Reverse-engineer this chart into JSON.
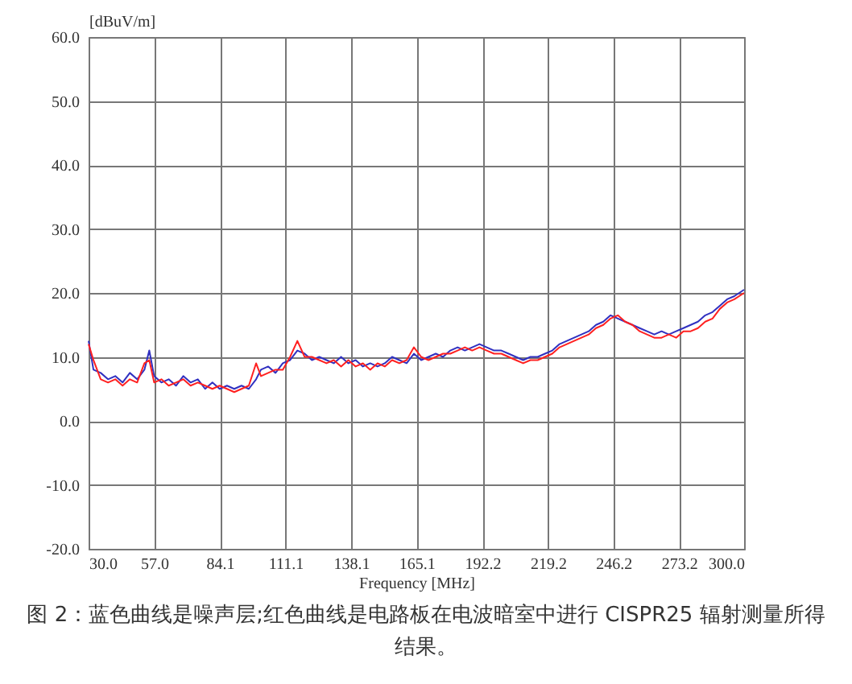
{
  "chart_data": {
    "type": "line",
    "xlabel": "Frequency [MHz]",
    "ylabel": "[dBuV/m]",
    "x": [
      30,
      32,
      35,
      38,
      41,
      44,
      47,
      50,
      53,
      55,
      57,
      60,
      63,
      66,
      69,
      72,
      75,
      78,
      81,
      84,
      87,
      90,
      93,
      96,
      99,
      101,
      104,
      107,
      110,
      113,
      116,
      119,
      122,
      125,
      128,
      131,
      134,
      137,
      140,
      143,
      146,
      149,
      152,
      155,
      158,
      161,
      164,
      167,
      170,
      173,
      176,
      179,
      182,
      185,
      188,
      191,
      194,
      197,
      200,
      203,
      206,
      209,
      212,
      215,
      218,
      221,
      224,
      227,
      230,
      233,
      236,
      239,
      242,
      245,
      248,
      251,
      254,
      257,
      260,
      263,
      266,
      269,
      272,
      275,
      278,
      281,
      284,
      287,
      290,
      293,
      296,
      300
    ],
    "series": [
      {
        "color": "#3030c0",
        "values": [
          12.5,
          8,
          7.5,
          6.5,
          7,
          6,
          7.5,
          6.5,
          8,
          11,
          7,
          6,
          6.5,
          5.5,
          7,
          6,
          6.5,
          5,
          6,
          5,
          5.5,
          5,
          5.5,
          5,
          6.5,
          8,
          8.5,
          7.5,
          9,
          9.5,
          11,
          10.5,
          9.5,
          10,
          9.5,
          9,
          10,
          9,
          9.5,
          8.5,
          9,
          8.5,
          9,
          10,
          9.5,
          9,
          10.5,
          9.5,
          10,
          10.5,
          10,
          11,
          11.5,
          11,
          11.5,
          12,
          11.5,
          11,
          11,
          10.5,
          10,
          9.5,
          10,
          10,
          10.5,
          11,
          12,
          12.5,
          13,
          13.5,
          14,
          15,
          15.5,
          16.5,
          16,
          15.5,
          15,
          14.5,
          14,
          13.5,
          14,
          13.5,
          14,
          14.5,
          15,
          15.5,
          16.5,
          17,
          18,
          19,
          19.5,
          20.5
        ]
      },
      {
        "color": "#ff2020",
        "values": [
          12,
          9.5,
          6.5,
          6,
          6.5,
          5.5,
          6.5,
          6,
          9,
          9.5,
          6,
          6.5,
          5.5,
          6,
          6.5,
          5.5,
          6,
          5.5,
          5,
          5.5,
          5,
          4.5,
          5,
          5.5,
          9,
          7,
          7.5,
          8,
          8,
          10,
          12.5,
          10,
          10,
          9.5,
          9,
          9.5,
          8.5,
          9.5,
          8.5,
          9,
          8,
          9,
          8.5,
          9.5,
          9,
          9.5,
          11.5,
          10,
          9.5,
          10,
          10.5,
          10.5,
          11,
          11.5,
          11,
          11.5,
          11,
          10.5,
          10.5,
          10,
          9.5,
          9,
          9.5,
          9.5,
          10,
          10.5,
          11.5,
          12,
          12.5,
          13,
          13.5,
          14.5,
          15,
          16,
          16.5,
          15.5,
          15,
          14,
          13.5,
          13,
          13,
          13.5,
          13,
          14,
          14,
          14.5,
          15.5,
          16,
          17.5,
          18.5,
          19,
          20
        ]
      }
    ],
    "xlim": [
      30,
      300
    ],
    "xticks": [
      {
        "value": 30,
        "label": "30.0"
      },
      {
        "value": 57,
        "label": "57.0"
      },
      {
        "value": 84.1,
        "label": "84.1"
      },
      {
        "value": 111.1,
        "label": "111.1"
      },
      {
        "value": 138.1,
        "label": "138.1"
      },
      {
        "value": 165.1,
        "label": "165.1"
      },
      {
        "value": 192.2,
        "label": "192.2"
      },
      {
        "value": 219.2,
        "label": "219.2"
      },
      {
        "value": 246.2,
        "label": "246.2"
      },
      {
        "value": 273.2,
        "label": "273.2"
      },
      {
        "value": 300,
        "label": "300.0"
      }
    ],
    "ylim": [
      -20,
      60
    ],
    "yticks": [
      {
        "value": -20,
        "label": "-20.0"
      },
      {
        "value": -10,
        "label": "-10.0"
      },
      {
        "value": 0,
        "label": "0.0"
      },
      {
        "value": 10,
        "label": "10.0"
      },
      {
        "value": 20,
        "label": "20.0"
      },
      {
        "value": 30,
        "label": "30.0"
      },
      {
        "value": 40,
        "label": "40.0"
      },
      {
        "value": 50,
        "label": "50.0"
      },
      {
        "value": 60,
        "label": "60.0"
      }
    ],
    "grid": true,
    "legend": false,
    "marker": "none",
    "line_style": "solid",
    "annotations": [
      "图 2：蓝色曲线是噪声层;红色曲线是电路板在电波暗室中进行 CISPR25 辐射测量所得结果。"
    ]
  }
}
